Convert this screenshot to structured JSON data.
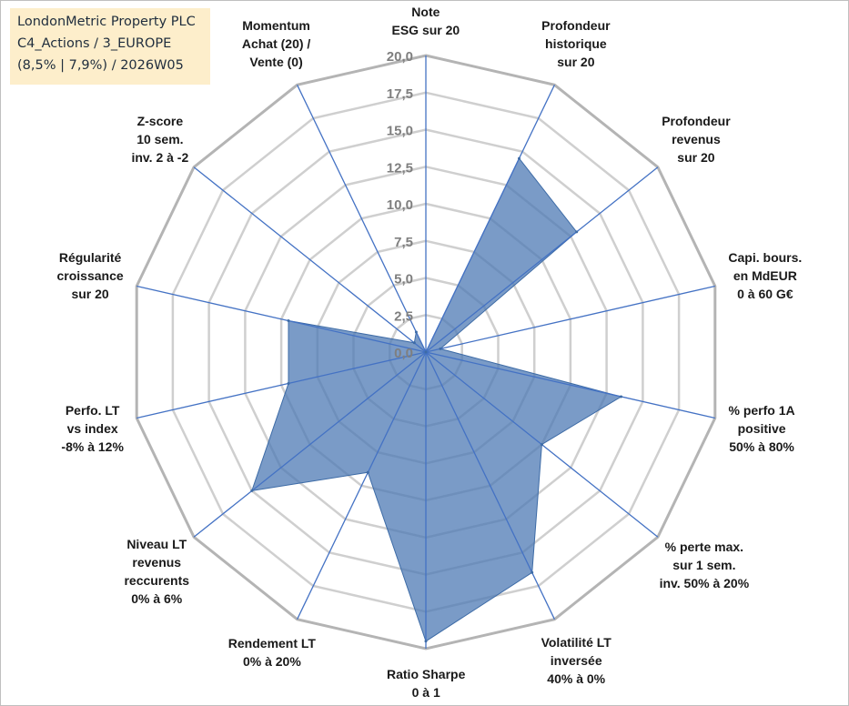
{
  "info": {
    "line1": "LondonMetric Property PLC",
    "line2": "C4_Actions / 3_EUROPE",
    "line3": "(8,5% | 7,9%) / 2026W05"
  },
  "chart_data": {
    "type": "radar",
    "title": "LondonMetric Property PLC",
    "rmin": 0,
    "rmax": 20,
    "tick_step": 2.5,
    "tick_labels": [
      "0,0",
      "2,5",
      "5,0",
      "7,5",
      "10,0",
      "12,5",
      "15,0",
      "17,5",
      "20,0"
    ],
    "axes": [
      {
        "lines": [
          "Note",
          "ESG sur 20"
        ],
        "value": 0
      },
      {
        "lines": [
          "Profondeur",
          "historique",
          "sur 20"
        ],
        "value": 14.5
      },
      {
        "lines": [
          "Profondeur",
          "revenus",
          "sur 20"
        ],
        "value": 13.0
      },
      {
        "lines": [
          "Capi. bours.",
          "en MdEUR",
          "0 à 60 G€"
        ],
        "value": 1.0
      },
      {
        "lines": [
          "% perfo 1A",
          "positive",
          "50% à 80%"
        ],
        "value": 13.5
      },
      {
        "lines": [
          "% perte max.",
          "sur 1 sem.",
          "inv. 50% à 20%"
        ],
        "value": 10.0
      },
      {
        "lines": [
          "Volatilité LT",
          "inversée",
          "40% à 0%"
        ],
        "value": 16.5
      },
      {
        "lines": [
          "Ratio Sharpe",
          "0 à 1"
        ],
        "value": 19.5
      },
      {
        "lines": [
          "Rendement LT",
          "0% à 20%"
        ],
        "value": 9.0
      },
      {
        "lines": [
          "Niveau LT",
          "revenus",
          "reccurents",
          "0% à 6%"
        ],
        "value": 15.0
      },
      {
        "lines": [
          "Perfo. LT",
          "vs index",
          "-8% à 12%"
        ],
        "value": 9.5
      },
      {
        "lines": [
          "Régularité",
          "croissance",
          "sur 20"
        ],
        "value": 9.5
      },
      {
        "lines": [
          "Z-score",
          "10 sem.",
          "inv. 2 à -2"
        ],
        "value": 1.0
      },
      {
        "lines": [
          "Momentum",
          "Achat (20) /",
          "Vente (0)"
        ],
        "value": 1.5
      }
    ],
    "series": [
      {
        "name": "LondonMetric Property PLC",
        "color": "#4e79b4"
      }
    ]
  }
}
